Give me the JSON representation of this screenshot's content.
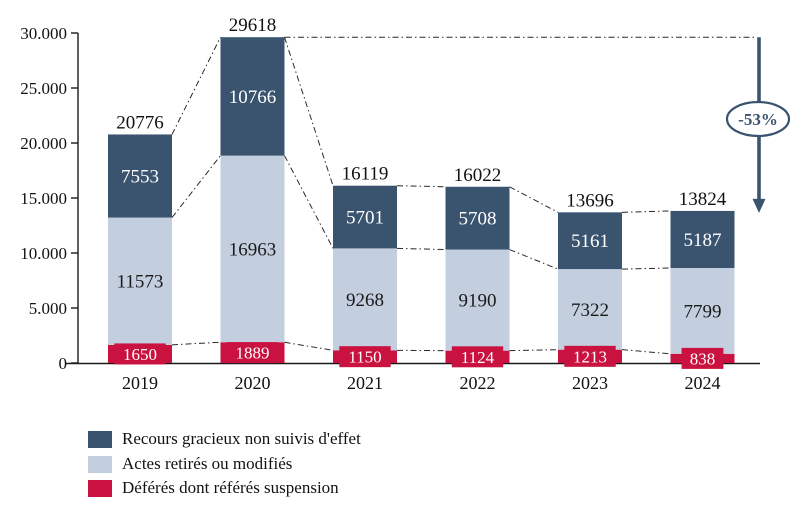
{
  "chart_data": {
    "type": "bar",
    "variant": "stacked",
    "title": "",
    "categories": [
      "2019",
      "2020",
      "2021",
      "2022",
      "2023",
      "2024"
    ],
    "series": [
      {
        "name": "Déférés dont référés suspension",
        "color": "#c9123f",
        "label_color": "#ffffff",
        "label_style": "boxed",
        "values": [
          1650,
          1889,
          1150,
          1124,
          1213,
          838
        ]
      },
      {
        "name": "Actes retirés ou modifiés",
        "color": "#c3cedf",
        "label_color": "#1a1a1a",
        "label_style": "plain",
        "values": [
          11573,
          16963,
          9268,
          9190,
          7322,
          7799
        ]
      },
      {
        "name": "Recours gracieux non suivis d'effet",
        "color": "#3a536f",
        "label_color": "#ffffff",
        "label_style": "plain",
        "values": [
          7553,
          10766,
          5701,
          5708,
          5161,
          5187
        ]
      }
    ],
    "totals": [
      20776,
      29618,
      16119,
      16022,
      13696,
      13824
    ],
    "y_axis": {
      "min": 0,
      "max": 30000,
      "tick_values": [
        0,
        5000,
        10000,
        15000,
        20000,
        25000,
        30000
      ],
      "tick_labels": [
        "0",
        "5.000",
        "10.000",
        "15.000",
        "20.000",
        "25.000",
        "30.000"
      ],
      "grid": false
    },
    "xlabel": "",
    "ylabel": "",
    "connectors": "dashed lines join segment boundaries of adjacent bars",
    "annotation": {
      "label": "-53%",
      "arrow_from_value": 29618,
      "arrow_to_value": 13824,
      "color": "#3a536f"
    },
    "legend": {
      "position": "bottom-left",
      "entries": [
        {
          "label": "Recours gracieux non suivis d'effet",
          "color": "#3a536f"
        },
        {
          "label": "Actes retirés ou modifiés",
          "color": "#c3cedf"
        },
        {
          "label": "Déférés dont référés suspension",
          "color": "#c9123f"
        }
      ]
    },
    "colors": {
      "axis": "#1a1a1a",
      "connector": "#2a2a2a",
      "value_text": "#111111"
    }
  }
}
